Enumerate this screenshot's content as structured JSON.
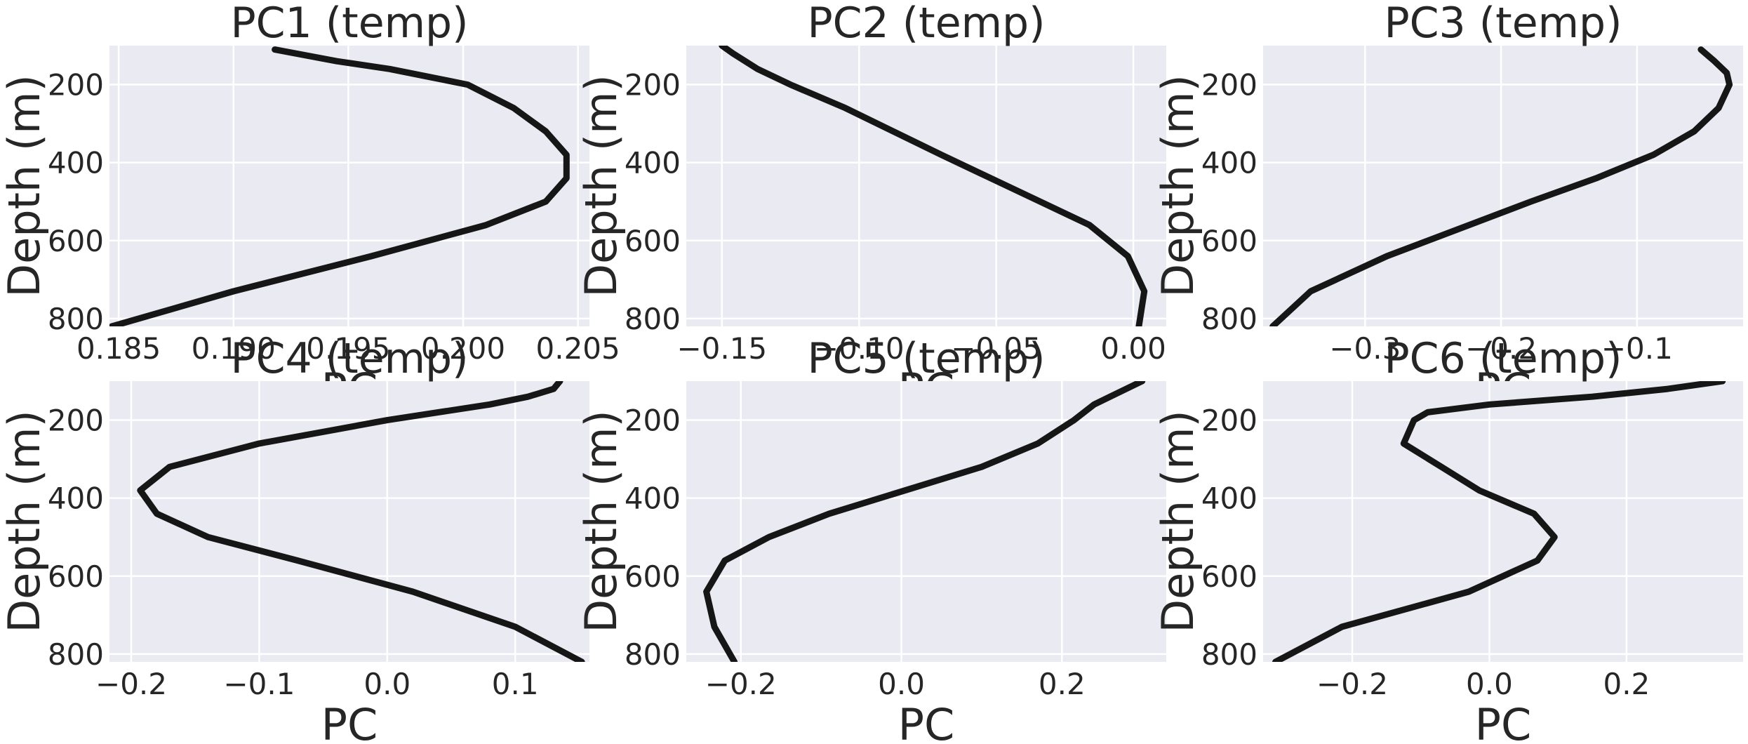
{
  "chart_data": [
    {
      "type": "line",
      "title": "PC1 (temp)",
      "xlabel": "PC",
      "ylabel": "Depth (m)",
      "xlim": [
        0.1846,
        0.2055
      ],
      "ylim": [
        820,
        100
      ],
      "xticks": [
        0.185,
        0.19,
        0.195,
        0.2,
        0.205
      ],
      "xtick_labels": [
        "0.185",
        "0.190",
        "0.195",
        "0.200",
        "0.205"
      ],
      "yticks": [
        200,
        400,
        600,
        800
      ],
      "ytick_labels": [
        "200",
        "400",
        "600",
        "800"
      ],
      "grid": true,
      "series": [
        {
          "x": [
            0.1918,
            0.1945,
            0.1968,
            0.1985,
            0.2002,
            0.2022,
            0.2036,
            0.2045,
            0.2045,
            0.2036,
            0.201,
            0.196,
            0.19,
            0.1847
          ],
          "y": [
            110,
            140,
            160,
            180,
            200,
            260,
            320,
            380,
            440,
            500,
            560,
            640,
            730,
            820
          ]
        }
      ]
    },
    {
      "type": "line",
      "title": "PC2 (temp)",
      "xlabel": "PC",
      "ylabel": "Depth (m)",
      "xlim": [
        -0.163,
        0.012
      ],
      "ylim": [
        820,
        100
      ],
      "xticks": [
        -0.15,
        -0.1,
        -0.05,
        0.0
      ],
      "xtick_labels": [
        "−0.15",
        "−0.10",
        "−0.05",
        "0.00"
      ],
      "yticks": [
        200,
        400,
        600,
        800
      ],
      "ytick_labels": [
        "200",
        "400",
        "600",
        "800"
      ],
      "grid": true,
      "series": [
        {
          "x": [
            -0.15,
            -0.146,
            -0.137,
            -0.125,
            -0.105,
            -0.07,
            -0.034,
            -0.016,
            -0.002,
            0.004,
            0.002
          ],
          "y": [
            100,
            120,
            160,
            200,
            260,
            380,
            500,
            560,
            640,
            730,
            820
          ]
        }
      ]
    },
    {
      "type": "line",
      "title": "PC3 (temp)",
      "xlabel": "PC",
      "ylabel": "Depth (m)",
      "xlim": [
        -0.375,
        -0.022
      ],
      "ylim": [
        820,
        100
      ],
      "xticks": [
        -0.3,
        -0.2,
        -0.1
      ],
      "xtick_labels": [
        "−0.3",
        "−0.2",
        "−0.1"
      ],
      "yticks": [
        200,
        400,
        600,
        800
      ],
      "ytick_labels": [
        "200",
        "400",
        "600",
        "800"
      ],
      "grid": true,
      "series": [
        {
          "x": [
            -0.053,
            -0.043,
            -0.034,
            -0.032,
            -0.04,
            -0.058,
            -0.088,
            -0.13,
            -0.178,
            -0.284,
            -0.34,
            -0.368
          ],
          "y": [
            110,
            140,
            170,
            200,
            260,
            320,
            380,
            440,
            500,
            640,
            730,
            820
          ]
        }
      ]
    },
    {
      "type": "line",
      "title": "PC4 (temp)",
      "xlabel": "PC",
      "ylabel": "Depth (m)",
      "xlim": [
        -0.217,
        0.158
      ],
      "ylim": [
        820,
        100
      ],
      "xticks": [
        -0.2,
        -0.1,
        0.0,
        0.1
      ],
      "xtick_labels": [
        "−0.2",
        "−0.1",
        "0.0",
        "0.1"
      ],
      "yticks": [
        200,
        400,
        600,
        800
      ],
      "ytick_labels": [
        "200",
        "400",
        "600",
        "800"
      ],
      "grid": true,
      "series": [
        {
          "x": [
            0.135,
            0.13,
            0.11,
            0.08,
            0.0,
            -0.1,
            -0.17,
            -0.193,
            -0.18,
            -0.14,
            -0.07,
            0.02,
            0.1,
            0.152
          ],
          "y": [
            100,
            120,
            140,
            160,
            200,
            260,
            320,
            380,
            440,
            500,
            560,
            640,
            730,
            820
          ]
        }
      ]
    },
    {
      "type": "line",
      "title": "PC5 (temp)",
      "xlabel": "PC",
      "ylabel": "Depth (m)",
      "xlim": [
        -0.268,
        0.33
      ],
      "ylim": [
        820,
        100
      ],
      "xticks": [
        -0.2,
        0.0,
        0.2
      ],
      "xtick_labels": [
        "−0.2",
        "0.0",
        "0.2"
      ],
      "yticks": [
        200,
        400,
        600,
        800
      ],
      "ytick_labels": [
        "200",
        "400",
        "600",
        "800"
      ],
      "grid": true,
      "series": [
        {
          "x": [
            0.3,
            0.26,
            0.24,
            0.215,
            0.17,
            0.1,
            -0.09,
            -0.165,
            -0.22,
            -0.243,
            -0.233,
            -0.208
          ],
          "y": [
            100,
            140,
            160,
            200,
            260,
            320,
            440,
            500,
            560,
            640,
            730,
            820
          ]
        }
      ]
    },
    {
      "type": "line",
      "title": "PC6 (temp)",
      "xlabel": "PC",
      "ylabel": "Depth (m)",
      "xlim": [
        -0.33,
        0.37
      ],
      "ylim": [
        820,
        100
      ],
      "xticks": [
        -0.2,
        0.0,
        0.2
      ],
      "xtick_labels": [
        "−0.2",
        "0.0",
        "0.2"
      ],
      "yticks": [
        200,
        400,
        600,
        800
      ],
      "ytick_labels": [
        "200",
        "400",
        "600",
        "800"
      ],
      "grid": true,
      "series": [
        {
          "x": [
            0.34,
            0.26,
            0.15,
            0.0,
            -0.09,
            -0.11,
            -0.125,
            -0.07,
            -0.015,
            0.065,
            0.095,
            0.07,
            -0.03,
            -0.215,
            -0.312
          ],
          "y": [
            100,
            120,
            140,
            160,
            180,
            200,
            260,
            320,
            380,
            440,
            500,
            560,
            640,
            730,
            820
          ]
        }
      ]
    }
  ]
}
